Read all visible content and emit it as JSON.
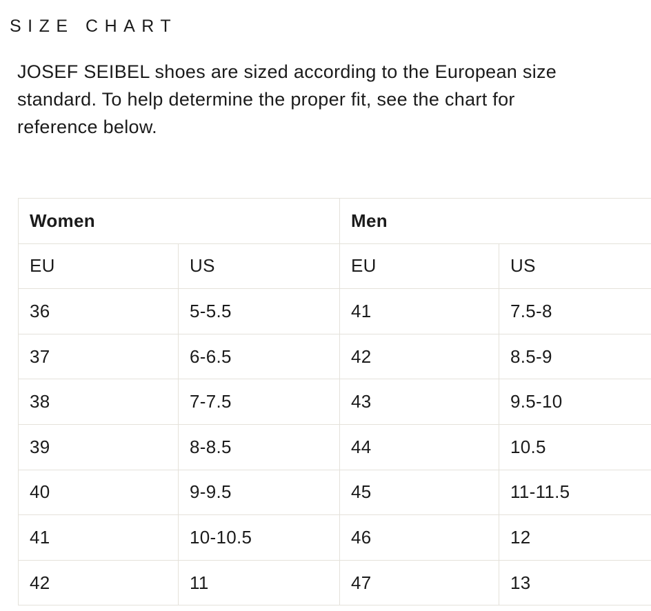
{
  "page": {
    "title": "SIZE CHART"
  },
  "intro": {
    "text": "JOSEF SEIBEL shoes are sized according to the European size standard. To help determine the proper fit, see the chart for reference below.",
    "lines": [
      "JOSEF SEIBEL shoes are sized according to the European size",
      "standard. To help determine the proper fit, see the chart for",
      "reference below."
    ]
  },
  "size_chart": {
    "groups": [
      {
        "label": "Women"
      },
      {
        "label": "Men"
      }
    ],
    "columns": [
      "EU",
      "US",
      "EU",
      "US"
    ],
    "rows": [
      [
        "36",
        "5-5.5",
        "41",
        "7.5-8"
      ],
      [
        "37",
        "6-6.5",
        "42",
        "8.5-9"
      ],
      [
        "38",
        "7-7.5",
        "43",
        "9.5-10"
      ],
      [
        "39",
        "8-8.5",
        "44",
        "10.5"
      ],
      [
        "40",
        "9-9.5",
        "45",
        "11-11.5"
      ],
      [
        "41",
        "10-10.5",
        "46",
        "12"
      ],
      [
        "42",
        "11",
        "47",
        "13"
      ]
    ]
  },
  "colors": {
    "text": "#1b1b1b",
    "border": "#e4e1da",
    "background": "#ffffff"
  }
}
